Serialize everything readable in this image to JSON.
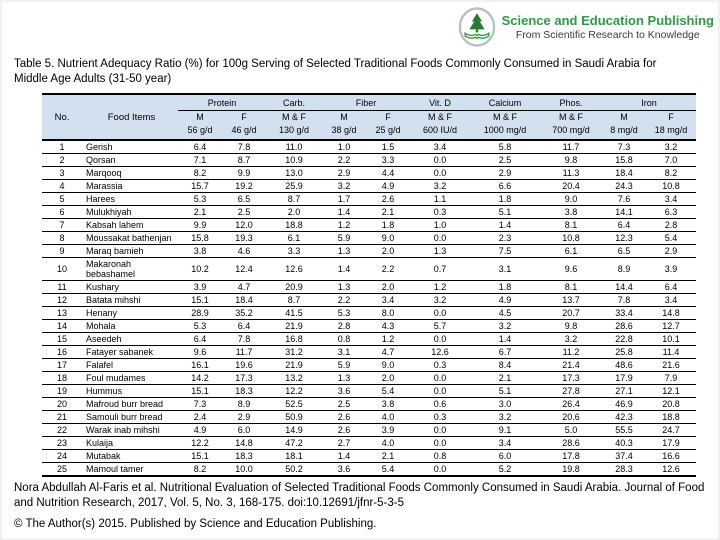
{
  "brand": {
    "name": "Science and Education Publishing",
    "tagline": "From Scientific Research to Knowledge"
  },
  "page_title": "Table 5. Nutrient Adequacy Ratio (%) for 100g Serving of Selected Traditional Foods Commonly Consumed in Saudi Arabia for Middle Age Adults (31-50 year)",
  "table": {
    "header": {
      "no_label": "No.",
      "food_label": "Food Items",
      "groups": [
        {
          "label": "Protein",
          "sub": [
            "M",
            "F"
          ],
          "units": [
            "56 g/d",
            "46 g/d"
          ]
        },
        {
          "label": "Carb.",
          "sub": [
            "M & F"
          ],
          "units": [
            "130 g/d"
          ]
        },
        {
          "label": "Fiber",
          "sub": [
            "M",
            "F"
          ],
          "units": [
            "38 g/d",
            "25 g/d"
          ]
        },
        {
          "label": "Vit. D",
          "sub": [
            "M & F"
          ],
          "units": [
            "600 IU/d"
          ]
        },
        {
          "label": "Calcium",
          "sub": [
            "M & F"
          ],
          "units": [
            "1000 mg/d"
          ]
        },
        {
          "label": "Phos.",
          "sub": [
            "M & F"
          ],
          "units": [
            "700 mg/d"
          ]
        },
        {
          "label": "Iron",
          "sub": [
            "M",
            "F"
          ],
          "units": [
            "8 mg/d",
            "18 mg/d"
          ]
        }
      ]
    },
    "rows": [
      {
        "no": "1",
        "food": "Gerish",
        "values": [
          "6.4",
          "7.8",
          "11.0",
          "1.0",
          "1.5",
          "3.4",
          "5.8",
          "11.7",
          "7.3",
          "3.2"
        ]
      },
      {
        "no": "2",
        "food": "Qorsan",
        "values": [
          "7.1",
          "8.7",
          "10.9",
          "2.2",
          "3.3",
          "0.0",
          "2.5",
          "9.8",
          "15.8",
          "7.0"
        ]
      },
      {
        "no": "3",
        "food": "Marqooq",
        "values": [
          "8.2",
          "9.9",
          "13.0",
          "2.9",
          "4.4",
          "0.0",
          "2.9",
          "11.3",
          "18.4",
          "8.2"
        ]
      },
      {
        "no": "4",
        "food": "Marassia",
        "values": [
          "15.7",
          "19.2",
          "25.9",
          "3.2",
          "4.9",
          "3.2",
          "6.6",
          "20.4",
          "24.3",
          "10.8"
        ]
      },
      {
        "no": "5",
        "food": "Harees",
        "values": [
          "5.3",
          "6.5",
          "8.7",
          "1.7",
          "2.6",
          "1.1",
          "1.8",
          "9.0",
          "7.6",
          "3.4"
        ]
      },
      {
        "no": "6",
        "food": "Mulukhiyah",
        "values": [
          "2.1",
          "2.5",
          "2.0",
          "1.4",
          "2.1",
          "0.3",
          "5.1",
          "3.8",
          "14.1",
          "6.3"
        ]
      },
      {
        "no": "7",
        "food": "Kabsah lahem",
        "values": [
          "9.9",
          "12.0",
          "18.8",
          "1.2",
          "1.8",
          "1.0",
          "1.4",
          "8.1",
          "6.4",
          "2.8"
        ]
      },
      {
        "no": "8",
        "food": "Moussakat bathenjan",
        "values": [
          "15.8",
          "19.3",
          "6.1",
          "5.9",
          "9.0",
          "0.0",
          "2.3",
          "10.8",
          "12.3",
          "5.4"
        ]
      },
      {
        "no": "9",
        "food": "Maraq bamieh",
        "values": [
          "3.8",
          "4.6",
          "3.3",
          "1.3",
          "2.0",
          "1.3",
          "7.5",
          "6.1",
          "6.5",
          "2.9"
        ]
      },
      {
        "no": "10",
        "food": "Makaronah bebashamel",
        "values": [
          "10.2",
          "12.4",
          "12.6",
          "1.4",
          "2.2",
          "0.7",
          "3.1",
          "9.6",
          "8.9",
          "3.9"
        ]
      },
      {
        "no": "11",
        "food": "Kushary",
        "values": [
          "3.9",
          "4.7",
          "20.9",
          "1.3",
          "2.0",
          "1.2",
          "1.8",
          "8.1",
          "14.4",
          "6.4"
        ]
      },
      {
        "no": "12",
        "food": "Batata mihshi",
        "values": [
          "15.1",
          "18.4",
          "8.7",
          "2.2",
          "3.4",
          "3.2",
          "4.9",
          "13.7",
          "7.8",
          "3.4"
        ]
      },
      {
        "no": "13",
        "food": "Henany",
        "values": [
          "28.9",
          "35.2",
          "41.5",
          "5.3",
          "8.0",
          "0.0",
          "4.5",
          "20.7",
          "33.4",
          "14.8"
        ]
      },
      {
        "no": "14",
        "food": "Mohala",
        "values": [
          "5.3",
          "6.4",
          "21.9",
          "2.8",
          "4.3",
          "5.7",
          "3.2",
          "9.8",
          "28.6",
          "12.7"
        ]
      },
      {
        "no": "15",
        "food": "Aseedeh",
        "values": [
          "6.4",
          "7.8",
          "16.8",
          "0.8",
          "1.2",
          "0.0",
          "1.4",
          "3.2",
          "22.8",
          "10.1"
        ]
      },
      {
        "no": "16",
        "food": "Fatayer sabanek",
        "values": [
          "9.6",
          "11.7",
          "31.2",
          "3.1",
          "4.7",
          "12.6",
          "6.7",
          "11.2",
          "25.8",
          "11.4"
        ]
      },
      {
        "no": "17",
        "food": "Falafel",
        "values": [
          "16.1",
          "19.6",
          "21.9",
          "5.9",
          "9.0",
          "0.3",
          "8.4",
          "21.4",
          "48.6",
          "21.6"
        ]
      },
      {
        "no": "18",
        "food": "Foul mudames",
        "values": [
          "14.2",
          "17.3",
          "13.2",
          "1.3",
          "2.0",
          "0.0",
          "2.1",
          "17.3",
          "17.9",
          "7.9"
        ]
      },
      {
        "no": "19",
        "food": "Hummus",
        "values": [
          "15.1",
          "18.3",
          "12.2",
          "3.6",
          "5.4",
          "0.0",
          "5.1",
          "27.8",
          "27.1",
          "12.1"
        ]
      },
      {
        "no": "20",
        "food": "Mafroud burr bread",
        "values": [
          "7.3",
          "8.9",
          "52.5",
          "2.5",
          "3.8",
          "0.6",
          "3.0",
          "26.4",
          "46.9",
          "20.8"
        ]
      },
      {
        "no": "21",
        "food": "Samouli burr bread",
        "values": [
          "2.4",
          "2.9",
          "50.9",
          "2.6",
          "4.0",
          "0.3",
          "3.2",
          "20.6",
          "42.3",
          "18.8"
        ]
      },
      {
        "no": "22",
        "food": "Warak inab mihshi",
        "values": [
          "4.9",
          "6.0",
          "14.9",
          "2.6",
          "3.9",
          "0.0",
          "9.1",
          "5.0",
          "55.5",
          "24.7"
        ]
      },
      {
        "no": "23",
        "food": "Kulaija",
        "values": [
          "12.2",
          "14.8",
          "47.2",
          "2.7",
          "4.0",
          "0.0",
          "3.4",
          "28.6",
          "40.3",
          "17.9"
        ]
      },
      {
        "no": "24",
        "food": "Mutabak",
        "values": [
          "15.1",
          "18.3",
          "18.1",
          "1.4",
          "2.1",
          "0.8",
          "6.0",
          "17.8",
          "37.4",
          "16.6"
        ]
      },
      {
        "no": "25",
        "food": "Mamoul tamer",
        "values": [
          "8.2",
          "10.0",
          "50.2",
          "3.6",
          "5.4",
          "0.0",
          "5.2",
          "19.8",
          "28.3",
          "12.6"
        ]
      }
    ]
  },
  "footer": {
    "citation": "Nora Abdullah Al-Faris et al. Nutritional Evaluation of Selected Traditional Foods Commonly Consumed in Saudi Arabia. Journal of Food and Nutrition Research, 2017, Vol. 5, No. 3, 168-175. doi:10.12691/jfnr-5-3-5",
    "copyright": "© The Author(s) 2015. Published by Science and Education Publishing."
  },
  "colors": {
    "header_bg": "#d3e0ef",
    "brand_green": "#2e9b43",
    "tagline_gray": "#3a3a3a",
    "table_border": "#000000"
  }
}
